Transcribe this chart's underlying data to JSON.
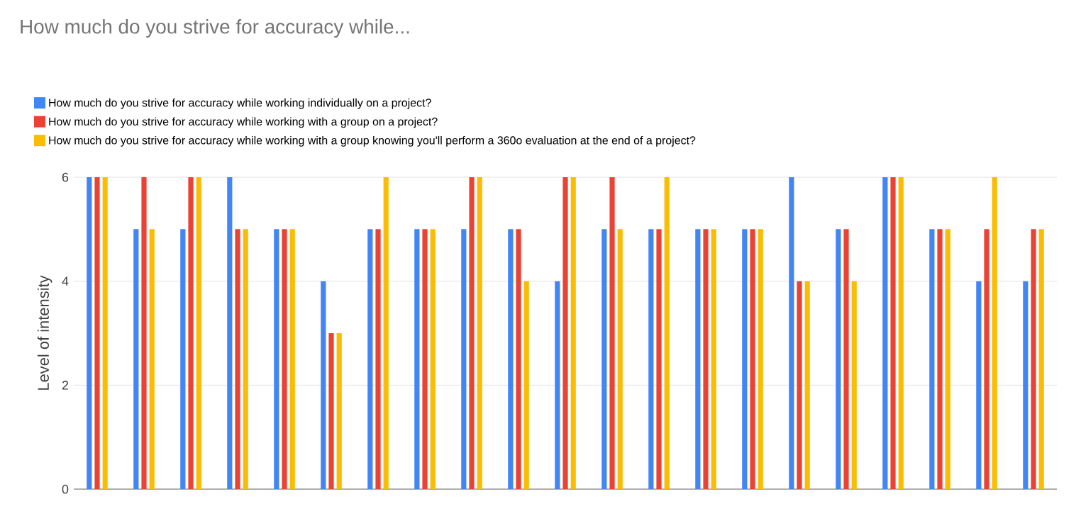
{
  "chart_data": {
    "type": "bar",
    "title": "How much do you strive for accuracy while...",
    "ylabel": "Level of intensity",
    "categories": [
      null,
      null,
      null,
      null,
      null,
      null,
      null,
      null,
      null,
      null,
      null,
      null,
      null,
      null,
      null,
      null,
      null,
      null,
      null,
      null,
      null
    ],
    "series": [
      {
        "name": "How much do you strive for accuracy while working individually on a project?",
        "color": "#4285f4",
        "values": [
          6,
          5,
          5,
          6,
          5,
          4,
          5,
          5,
          5,
          5,
          4,
          5,
          5,
          5,
          5,
          6,
          5,
          6,
          5,
          4,
          4
        ]
      },
      {
        "name": "How much do you strive for accuracy while working with a group on a project?",
        "color": "#ea4335",
        "values": [
          6,
          6,
          6,
          5,
          5,
          3,
          5,
          5,
          6,
          5,
          6,
          6,
          5,
          5,
          5,
          4,
          5,
          6,
          5,
          5,
          5
        ]
      },
      {
        "name": "How much do you strive for accuracy while working with a group knowing you'll perform a 360o evaluation at the end of a project?",
        "color": "#fbbc04",
        "values": [
          6,
          5,
          6,
          5,
          5,
          3,
          6,
          5,
          6,
          4,
          6,
          5,
          6,
          5,
          5,
          4,
          4,
          6,
          5,
          6,
          5
        ]
      }
    ],
    "ylim": [
      0,
      6
    ],
    "yticks": [
      0,
      2,
      4,
      6
    ],
    "grid": "y",
    "legend": "top"
  }
}
